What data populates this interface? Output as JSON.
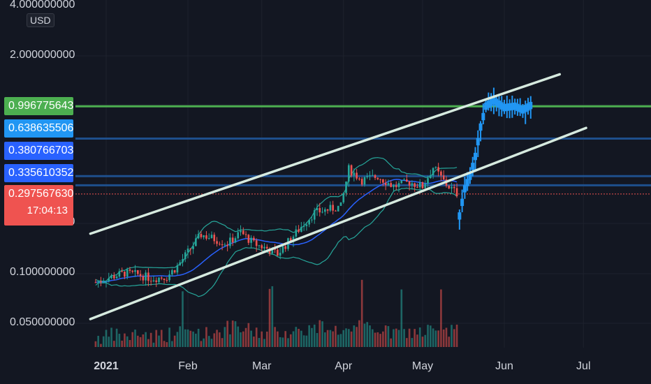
{
  "currency": "USD",
  "y_axis_ticks": [
    {
      "label": "4.000000000",
      "value": 4.0
    },
    {
      "label": "2.000000000",
      "value": 2.0
    },
    {
      "label": "0.200000000",
      "value": 0.2
    },
    {
      "label": "0.100000000",
      "value": 0.1
    },
    {
      "label": "0.050000000",
      "value": 0.05
    }
  ],
  "x_axis_ticks": [
    {
      "label": "2021",
      "strong": true
    },
    {
      "label": "Feb",
      "strong": false
    },
    {
      "label": "Mar",
      "strong": false
    },
    {
      "label": "Apr",
      "strong": false
    },
    {
      "label": "May",
      "strong": false
    },
    {
      "label": "Jun",
      "strong": false
    },
    {
      "label": "Jul",
      "strong": false
    }
  ],
  "price_tags": [
    {
      "label": "0.996775643",
      "value": 0.996775643,
      "color": "#4caf50"
    },
    {
      "label": "0.638635506",
      "value": 0.638635506,
      "color": "#2196f3"
    },
    {
      "label": "0.380766703",
      "value": 0.380766703,
      "color": "#2962ff"
    },
    {
      "label": "0.335610352",
      "value": 0.335610352,
      "color": "#2962ff"
    },
    {
      "label": "0.297567630",
      "value": 0.29756763,
      "color": "#ef5350",
      "countdown": "17:04:13"
    }
  ],
  "colors": {
    "background": "#131722",
    "grid": "#1e222d",
    "up": "#26a69a",
    "down": "#ef5350",
    "projection": "#2196f3",
    "channel": "#d6eadf",
    "green_line": "#4caf50",
    "blue_line": "#2962ff",
    "bollinger": "#26a69a",
    "moving_average": "#2962ff"
  },
  "chart_data": {
    "type": "candlestick",
    "title": "",
    "scale": "log",
    "ylim": [
      0.04,
      4.2
    ],
    "x_range": [
      "2020-12-26",
      "2021-07-28"
    ],
    "horizontal_levels": [
      0.996775643,
      0.638635506,
      0.380766703,
      0.335610352,
      0.29756763
    ],
    "channel_lines": [
      {
        "from": [
          "2020-12-26",
          0.172
        ],
        "to": [
          "2021-06-22",
          1.55
        ]
      },
      {
        "from": [
          "2020-12-26",
          0.053
        ],
        "to": [
          "2021-07-02",
          0.74
        ]
      }
    ],
    "candle_path": [
      [
        "2020-12-28",
        0.088
      ],
      [
        "2021-01-03",
        0.095
      ],
      [
        "2021-01-08",
        0.1
      ],
      [
        "2021-01-13",
        0.098
      ],
      [
        "2021-01-18",
        0.093
      ],
      [
        "2021-01-24",
        0.095
      ],
      [
        "2021-01-28",
        0.11
      ],
      [
        "2021-02-02",
        0.14
      ],
      [
        "2021-02-06",
        0.17
      ],
      [
        "2021-02-11",
        0.16
      ],
      [
        "2021-02-16",
        0.15
      ],
      [
        "2021-02-21",
        0.175
      ],
      [
        "2021-02-26",
        0.15
      ],
      [
        "2021-03-03",
        0.14
      ],
      [
        "2021-03-07",
        0.13
      ],
      [
        "2021-03-12",
        0.16
      ],
      [
        "2021-03-16",
        0.19
      ],
      [
        "2021-03-21",
        0.23
      ],
      [
        "2021-03-26",
        0.24
      ],
      [
        "2021-03-31",
        0.25
      ],
      [
        "2021-04-03",
        0.42
      ],
      [
        "2021-04-08",
        0.36
      ],
      [
        "2021-04-14",
        0.38
      ],
      [
        "2021-04-20",
        0.33
      ],
      [
        "2021-04-26",
        0.35
      ],
      [
        "2021-05-01",
        0.33
      ],
      [
        "2021-05-05",
        0.43
      ],
      [
        "2021-05-10",
        0.34
      ],
      [
        "2021-05-14",
        0.3
      ]
    ],
    "projection_path": [
      [
        "2021-05-15",
        0.22
      ],
      [
        "2021-05-17",
        0.32
      ],
      [
        "2021-05-19",
        0.38
      ],
      [
        "2021-05-21",
        0.5
      ],
      [
        "2021-05-23",
        0.75
      ],
      [
        "2021-05-25",
        1.0
      ],
      [
        "2021-05-28",
        1.08
      ],
      [
        "2021-06-01",
        0.98
      ],
      [
        "2021-06-05",
        1.0
      ],
      [
        "2021-06-08",
        0.95
      ],
      [
        "2021-06-12",
        1.03
      ]
    ],
    "volume_path": [
      0.1,
      0.2,
      0.15,
      0.3,
      0.2,
      0.25,
      0.35,
      0.4,
      0.3,
      0.45,
      0.6,
      0.5,
      0.35,
      0.3,
      0.4,
      0.45,
      0.55,
      0.7,
      0.5,
      0.4,
      0.65,
      0.55,
      0.35,
      0.3,
      0.4,
      0.45,
      0.3,
      0.6,
      0.35
    ]
  }
}
